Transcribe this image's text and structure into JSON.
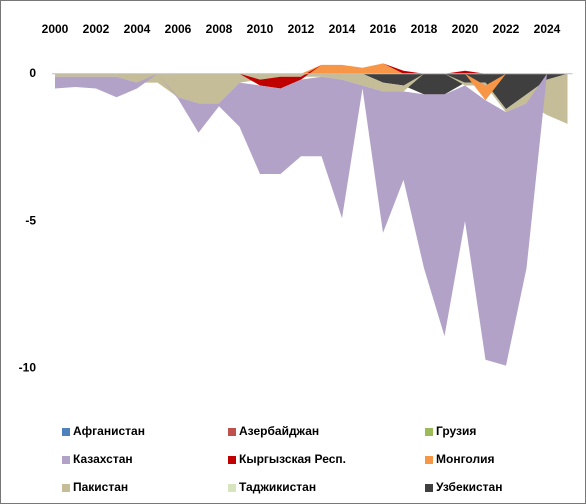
{
  "chart_data": {
    "type": "stacked_area",
    "x": [
      2000,
      2001,
      2002,
      2003,
      2004,
      2005,
      2006,
      2007,
      2008,
      2009,
      2010,
      2011,
      2012,
      2013,
      2014,
      2015,
      2016,
      2017,
      2018,
      2019,
      2020,
      2021,
      2022,
      2023,
      2024,
      2025
    ],
    "xlim": [
      2000,
      2025
    ],
    "xticks": [
      2000,
      2002,
      2004,
      2006,
      2008,
      2010,
      2012,
      2014,
      2016,
      2018,
      2020,
      2022,
      2024
    ],
    "ylim": [
      -11,
      0.5
    ],
    "yticks": [
      0,
      -5,
      -10
    ],
    "series": [
      {
        "name": "Афганистан",
        "color": "#4f81bd",
        "values": [
          0,
          0,
          0,
          0,
          0,
          0,
          0,
          0,
          0,
          0,
          0,
          0,
          0,
          0,
          0,
          0,
          0,
          0,
          0,
          0,
          0,
          0,
          0,
          0,
          0,
          0
        ]
      },
      {
        "name": "Азербайджан",
        "color": "#c0504d",
        "values": [
          0,
          0,
          0,
          0,
          0,
          0,
          0,
          0,
          0,
          0,
          0,
          0,
          0,
          0,
          0,
          0,
          0,
          0,
          0,
          0,
          0,
          0,
          0,
          0,
          0,
          0
        ]
      },
      {
        "name": "Грузия",
        "color": "#9bbb59",
        "values": [
          0,
          0,
          0,
          0,
          0,
          0,
          0,
          0,
          0,
          0,
          0,
          0,
          0,
          0,
          0,
          0,
          0,
          0,
          0,
          0,
          0,
          0,
          0,
          0,
          0,
          0
        ]
      },
      {
        "name": "Казахстан",
        "color": "#b3a2c7",
        "values": [
          -0.4,
          -0.35,
          -0.4,
          -0.7,
          -0.2,
          0,
          -0.05,
          -1.0,
          -0.1,
          -1.5,
          -3.0,
          -2.9,
          -2.6,
          -2.7,
          -4.7,
          -0.1,
          -4.8,
          -3.0,
          -5.9,
          -8.2,
          -4.6,
          -8.8,
          -8.6,
          -5.6,
          0,
          0
        ]
      },
      {
        "name": "Кыргызская Респ.",
        "color": "#c00000",
        "values": [
          0,
          0,
          0,
          0,
          0,
          0,
          0,
          0,
          0,
          0,
          -0.2,
          -0.4,
          -0.1,
          0,
          0,
          0,
          0,
          0.1,
          0,
          0,
          0.1,
          0,
          0,
          0,
          0,
          0
        ]
      },
      {
        "name": "Монголия",
        "color": "#f79646",
        "values": [
          0,
          0,
          0,
          0,
          0,
          0,
          0,
          0,
          0,
          0,
          0,
          0,
          0,
          0.3,
          0.3,
          0.2,
          0.35,
          0,
          0,
          0,
          0,
          -0.5,
          0,
          0,
          0,
          0
        ]
      },
      {
        "name": "Пакистан",
        "color": "#c4bd97",
        "values": [
          -0.1,
          -0.1,
          -0.1,
          -0.1,
          -0.3,
          -0.3,
          -0.8,
          -1.0,
          -1.0,
          -0.3,
          -0.2,
          -0.1,
          -0.1,
          -0.1,
          -0.2,
          -0.4,
          -0.3,
          -0.2,
          0,
          0,
          -0.1,
          -0.1,
          -0.1,
          -0.3,
          -1.2,
          -1.7
        ]
      },
      {
        "name": "Таджикистан",
        "color": "#d7e4bd",
        "values": [
          0,
          0,
          0,
          0,
          0,
          0,
          0,
          0,
          0,
          0,
          0,
          0,
          0,
          0,
          0,
          0,
          0,
          0,
          0,
          0,
          0,
          0,
          0,
          0,
          0,
          0
        ]
      },
      {
        "name": "Узбекистан",
        "color": "#3f3f3f",
        "values": [
          0,
          0,
          0,
          0,
          0,
          0,
          0,
          0,
          0,
          0,
          0,
          0,
          0,
          0,
          0,
          0,
          -0.3,
          -0.4,
          -0.7,
          -0.7,
          -0.3,
          -0.3,
          -1.2,
          -0.7,
          -0.2,
          0
        ]
      }
    ]
  }
}
